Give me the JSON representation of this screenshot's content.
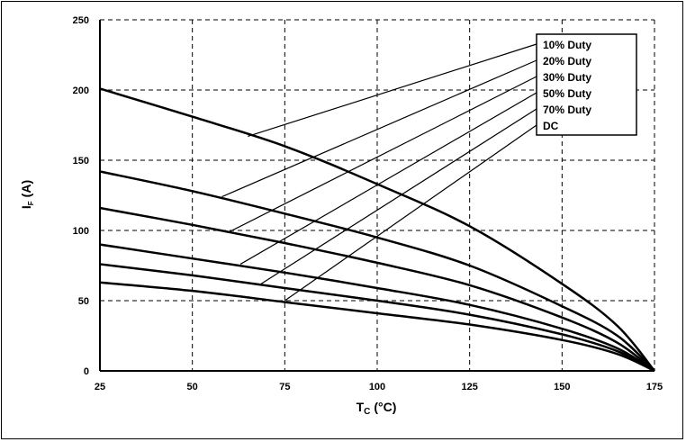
{
  "chart_data": {
    "type": "line",
    "title": "",
    "xlabel": {
      "main": "T",
      "sub": "C",
      "unit": "(°C)"
    },
    "ylabel": {
      "main": "I",
      "sub": "F",
      "unit": "(A)"
    },
    "xlim": [
      25,
      175
    ],
    "ylim": [
      0,
      250
    ],
    "xticks": [
      25,
      50,
      75,
      100,
      125,
      150,
      175
    ],
    "yticks": [
      0,
      50,
      100,
      150,
      200,
      250
    ],
    "grid": true,
    "legend_position": "top-right",
    "series": [
      {
        "name": "10% Duty",
        "x": [
          25,
          50,
          75,
          100,
          125,
          150,
          165,
          175
        ],
        "values": [
          201,
          181,
          160,
          133,
          103,
          62,
          32,
          0
        ]
      },
      {
        "name": "20% Duty",
        "x": [
          25,
          50,
          75,
          100,
          125,
          150,
          165,
          175
        ],
        "values": [
          142,
          128,
          112,
          95,
          75,
          46,
          25,
          0
        ]
      },
      {
        "name": "30% Duty",
        "x": [
          25,
          50,
          75,
          100,
          125,
          150,
          165,
          175
        ],
        "values": [
          116,
          104,
          91,
          77,
          61,
          38,
          20,
          0
        ]
      },
      {
        "name": "50% Duty",
        "x": [
          25,
          50,
          75,
          100,
          125,
          150,
          165,
          175
        ],
        "values": [
          90,
          80,
          70,
          59,
          47,
          30,
          16,
          0
        ]
      },
      {
        "name": "70% Duty",
        "x": [
          25,
          50,
          75,
          100,
          125,
          150,
          165,
          175
        ],
        "values": [
          76,
          68,
          59,
          50,
          40,
          26,
          14,
          0
        ]
      },
      {
        "name": "DC",
        "x": [
          25,
          50,
          75,
          100,
          125,
          150,
          165,
          175
        ],
        "values": [
          63,
          57,
          49,
          41,
          33,
          22,
          12,
          0
        ]
      }
    ],
    "legend_pointers": [
      {
        "series": "10% Duty",
        "x": 65,
        "y": 167
      },
      {
        "series": "20% Duty",
        "x": 58,
        "y": 124
      },
      {
        "series": "30% Duty",
        "x": 60,
        "y": 99
      },
      {
        "series": "50% Duty",
        "x": 63,
        "y": 76
      },
      {
        "series": "70% Duty",
        "x": 68,
        "y": 61
      },
      {
        "series": "DC",
        "x": 75,
        "y": 50
      }
    ],
    "colors": {
      "line": "#000000",
      "grid": "#000000"
    }
  }
}
